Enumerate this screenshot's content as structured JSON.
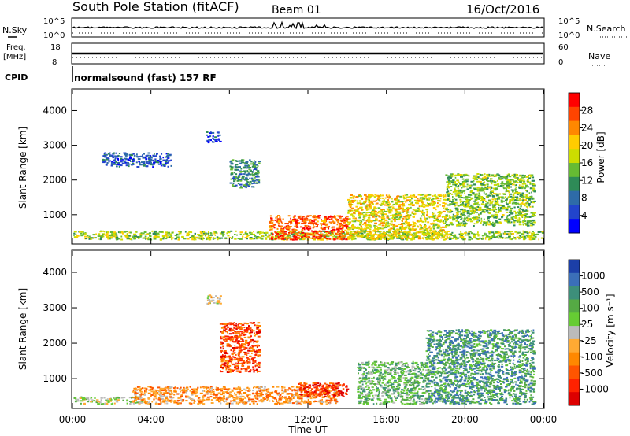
{
  "header": {
    "station": "South Pole Station (fitACF)",
    "beam": "Beam 01",
    "date": "16/Oct/2016"
  },
  "aux_panels": {
    "nsky_label": "N.Sky",
    "nsky_ticks": [
      "10^5",
      "10^0"
    ],
    "nsearch_label": "N.Search",
    "nsearch_ticks": [
      "10^5",
      "10^0"
    ],
    "freq_label_1": "Freq.",
    "freq_label_2": "[MHz]",
    "freq_ticks": [
      "18",
      "8"
    ],
    "nave_label": "Nave",
    "nave_ticks": [
      "60",
      "0"
    ],
    "cpid_label": "CPID",
    "cpid_text": "normalsound (fast) 157 RF"
  },
  "power_panel": {
    "ylabel": "Slant Range [km]",
    "cbar_label": "Power [dB]",
    "cbar_ticks": [
      "28",
      "24",
      "20",
      "16",
      "12",
      "8",
      "4"
    ],
    "cbar_colors": [
      "#ff0000",
      "#ff4400",
      "#ff8800",
      "#ffcc00",
      "#ccdd00",
      "#66bb33",
      "#2e8b57",
      "#2e6ba8",
      "#2244cc",
      "#0000ff"
    ]
  },
  "velocity_panel": {
    "ylabel": "Slant Range [km]",
    "cbar_label": "Velocity [m s⁻¹]",
    "cbar_ticks": [
      "1000",
      "500",
      "100",
      "25",
      "-25",
      "-100",
      "-500",
      "-1000"
    ],
    "cbar_colors": [
      "#1c3fa8",
      "#3b6fb8",
      "#3d8f7a",
      "#55aa44",
      "#66cc33",
      "#bbbbbb",
      "#ffaa33",
      "#ff8800",
      "#ff5500",
      "#ff2200",
      "#dd0000"
    ]
  },
  "xaxis": {
    "label": "Time UT",
    "ticks": [
      "00:00",
      "04:00",
      "08:00",
      "12:00",
      "16:00",
      "20:00",
      "00:00"
    ]
  },
  "chart_data": [
    {
      "type": "heatmap",
      "title": "Power",
      "xlabel": "Time UT",
      "ylabel": "Slant Range [km]",
      "xlim": [
        0,
        24
      ],
      "ylim": [
        180,
        4600
      ],
      "yticks": [
        1000,
        2000,
        3000,
        4000
      ],
      "value_label": "Power [dB]",
      "value_range": [
        0,
        30
      ],
      "regions": [
        {
          "t0": 0.0,
          "t1": 24.0,
          "r0": 300,
          "r1": 550,
          "level": 15
        },
        {
          "t0": 1.5,
          "t1": 5.0,
          "r0": 2400,
          "r1": 2800,
          "level": 6
        },
        {
          "t0": 6.8,
          "t1": 7.5,
          "r0": 3100,
          "r1": 3400,
          "level": 5
        },
        {
          "t0": 8.0,
          "t1": 9.5,
          "r0": 1800,
          "r1": 2600,
          "level": 10
        },
        {
          "t0": 10.0,
          "t1": 14.0,
          "r0": 300,
          "r1": 1000,
          "level": 25
        },
        {
          "t0": 14.0,
          "t1": 19.0,
          "r0": 300,
          "r1": 1600,
          "level": 18
        },
        {
          "t0": 19.0,
          "t1": 23.5,
          "r0": 700,
          "r1": 2200,
          "level": 14
        }
      ]
    },
    {
      "type": "heatmap",
      "title": "Velocity",
      "xlabel": "Time UT",
      "ylabel": "Slant Range [km]",
      "xlim": [
        0,
        24
      ],
      "ylim": [
        180,
        4600
      ],
      "yticks": [
        1000,
        2000,
        3000,
        4000
      ],
      "value_label": "Velocity [m s⁻¹]",
      "value_range": [
        -1000,
        1000
      ],
      "regions": [
        {
          "t0": 0.0,
          "t1": 3.5,
          "r0": 300,
          "r1": 500,
          "level": 100
        },
        {
          "t0": 3.0,
          "t1": 10.0,
          "r0": 300,
          "r1": 800,
          "level": -300
        },
        {
          "t0": 7.5,
          "t1": 9.5,
          "r0": 1200,
          "r1": 2600,
          "level": -600
        },
        {
          "t0": 6.8,
          "t1": 7.5,
          "r0": 3100,
          "r1": 3400,
          "level": 0
        },
        {
          "t0": 10.0,
          "t1": 13.5,
          "r0": 300,
          "r1": 800,
          "level": -300
        },
        {
          "t0": 11.5,
          "t1": 14.0,
          "r0": 500,
          "r1": 900,
          "level": -700
        },
        {
          "t0": 14.5,
          "t1": 18.0,
          "r0": 300,
          "r1": 1500,
          "level": 300
        },
        {
          "t0": 18.0,
          "t1": 23.5,
          "r0": 300,
          "r1": 2400,
          "level": 500
        }
      ]
    }
  ]
}
